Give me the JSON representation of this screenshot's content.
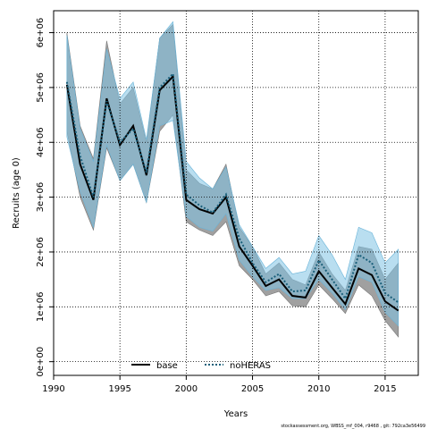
{
  "chart_data": {
    "type": "line",
    "xlabel": "Years",
    "ylabel": "Recruits (age 0)",
    "xlim": [
      1990,
      2017.5
    ],
    "ylim": [
      -250000,
      6400000
    ],
    "xticks": [
      1990,
      1995,
      2000,
      2005,
      2010,
      2015
    ],
    "xtick_labels": [
      "1990",
      "1995",
      "2000",
      "2005",
      "2010",
      "2015"
    ],
    "yticks": [
      0,
      1000000,
      2000000,
      3000000,
      4000000,
      5000000,
      6000000
    ],
    "ytick_labels": [
      "0e+00",
      "1e+06",
      "2e+06",
      "3e+06",
      "4e+06",
      "5e+06",
      "6e+06"
    ],
    "grid": true,
    "legend_position": "bottom",
    "x": [
      1991,
      1992,
      1993,
      1994,
      1995,
      1996,
      1997,
      1998,
      1999,
      2000,
      2001,
      2002,
      2003,
      2004,
      2005,
      2006,
      2007,
      2008,
      2009,
      2010,
      2011,
      2012,
      2013,
      2014,
      2015,
      2016
    ],
    "series": [
      {
        "name": "base",
        "color": "#000000",
        "line_style": "solid",
        "band_color": "#808080",
        "values": [
          5050000,
          3600000,
          2950000,
          4800000,
          3950000,
          4300000,
          3400000,
          4950000,
          5200000,
          2950000,
          2780000,
          2700000,
          3000000,
          2100000,
          1750000,
          1380000,
          1500000,
          1200000,
          1170000,
          1650000,
          1350000,
          1050000,
          1700000,
          1580000,
          1100000,
          930000
        ],
        "upper": [
          6000000,
          4300000,
          3700000,
          5850000,
          4700000,
          5000000,
          4000000,
          5900000,
          6150000,
          3500000,
          3250000,
          3150000,
          3600000,
          2450000,
          2100000,
          1600000,
          1800000,
          1500000,
          1400000,
          2000000,
          1600000,
          1300000,
          2100000,
          2050000,
          1500000,
          1800000
        ],
        "lower": [
          4200000,
          3000000,
          2400000,
          3900000,
          3300000,
          3600000,
          2900000,
          4200000,
          4500000,
          2550000,
          2400000,
          2300000,
          2550000,
          1750000,
          1500000,
          1200000,
          1280000,
          1020000,
          1000000,
          1400000,
          1150000,
          880000,
          1400000,
          1200000,
          750000,
          450000
        ]
      },
      {
        "name": "noHERAS",
        "color": "#1a5f7a",
        "line_style": "dotted",
        "band_color": "#7fc3e3",
        "values": [
          5100000,
          3750000,
          3000000,
          4750000,
          4000000,
          4250000,
          3450000,
          5000000,
          5250000,
          3050000,
          2850000,
          2720000,
          3050000,
          2250000,
          1800000,
          1450000,
          1600000,
          1280000,
          1300000,
          1850000,
          1500000,
          1150000,
          1950000,
          1800000,
          1250000,
          1080000
        ],
        "upper": [
          5950000,
          4250000,
          3650000,
          5700000,
          4800000,
          5100000,
          4050000,
          5900000,
          6200000,
          3650000,
          3350000,
          3150000,
          3550000,
          2500000,
          2100000,
          1700000,
          1900000,
          1600000,
          1650000,
          2300000,
          1950000,
          1500000,
          2450000,
          2350000,
          1800000,
          2050000
        ],
        "lower": [
          4100000,
          3100000,
          2450000,
          3950000,
          3300000,
          3600000,
          2900000,
          4300000,
          4400000,
          2650000,
          2450000,
          2380000,
          2700000,
          1850000,
          1550000,
          1300000,
          1350000,
          1150000,
          1150000,
          1500000,
          1250000,
          950000,
          1550000,
          1450000,
          900000,
          650000
        ]
      }
    ]
  },
  "legend": {
    "items": [
      {
        "label": "base"
      },
      {
        "label": "noHERAS"
      }
    ]
  },
  "footer_text": "stockassessment.org, WBSS_mf_004, r9468 , git: 792ca3e56499"
}
